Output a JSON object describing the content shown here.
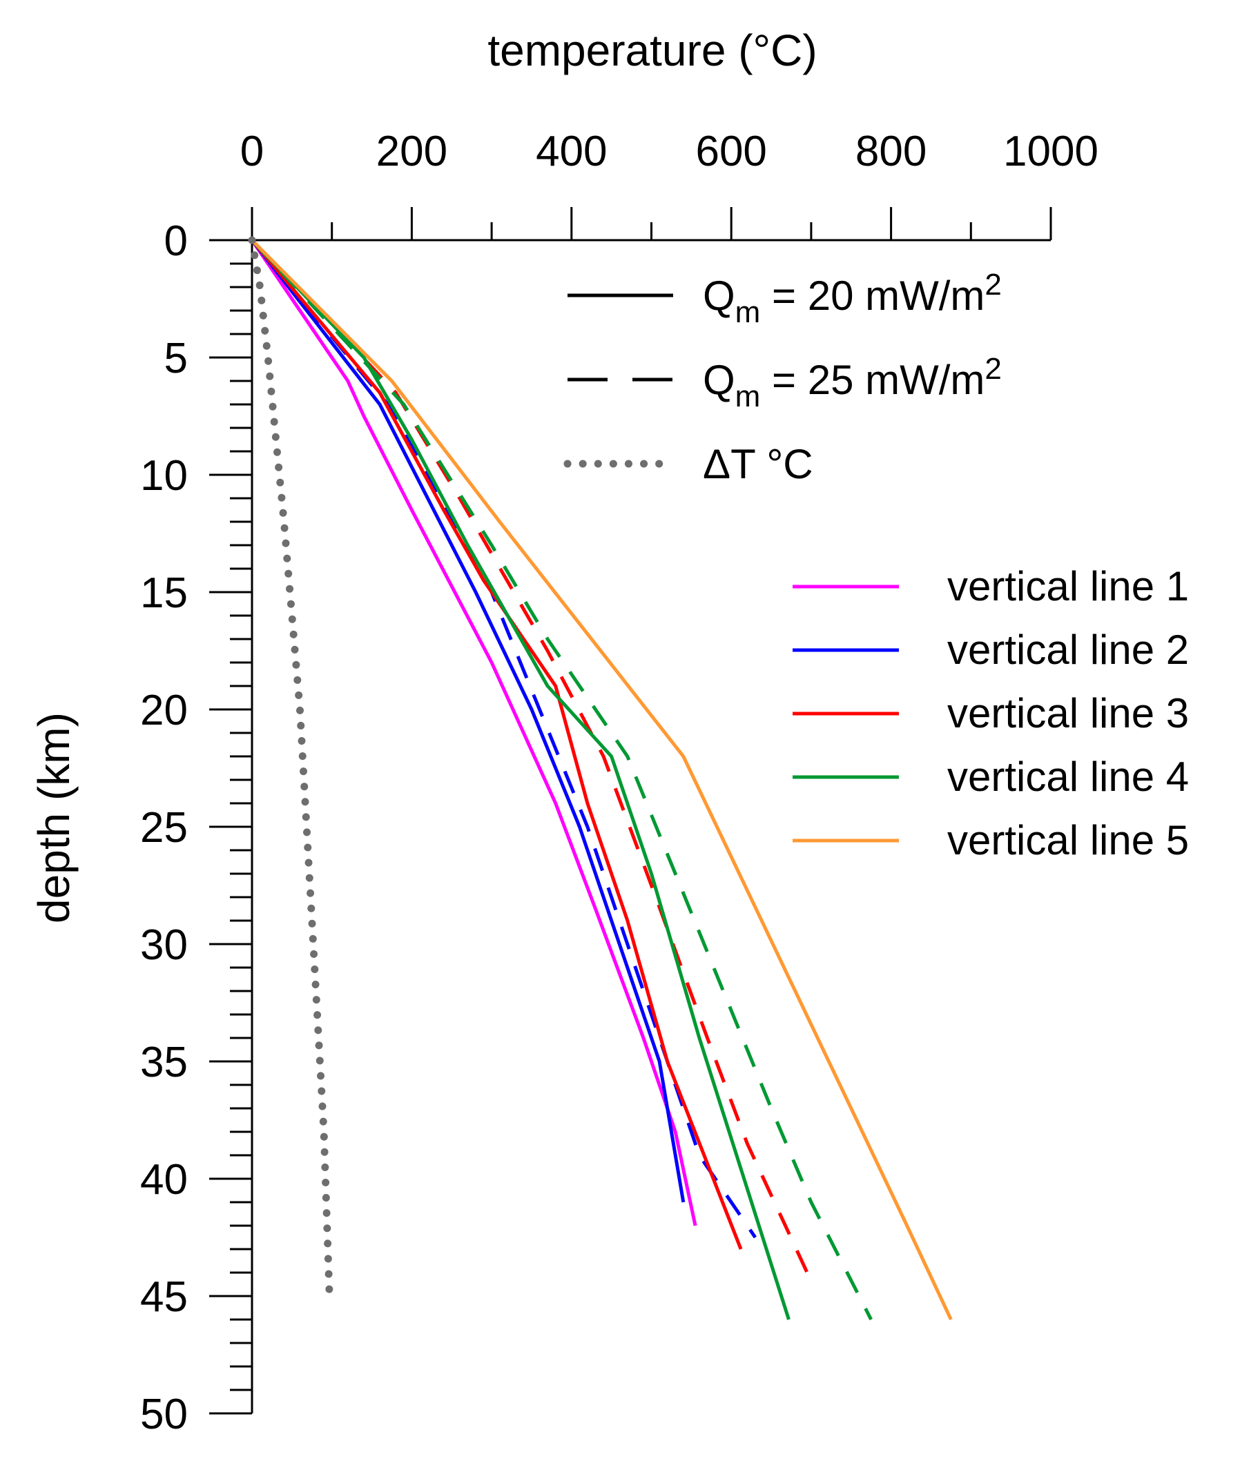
{
  "chart_data": {
    "type": "line",
    "orientation": "depth-profile",
    "xlabel": "temperature (°C)",
    "ylabel": "depth (km)",
    "xaxis_position": "top",
    "yaxis_inverted": true,
    "xlim": [
      0,
      1000
    ],
    "ylim": [
      0,
      50
    ],
    "x_ticks": [
      0,
      200,
      400,
      600,
      800,
      1000
    ],
    "x_tick_labels": [
      "0",
      "200",
      "400",
      "600",
      "800",
      "1000"
    ],
    "x_minor_step": 100,
    "y_ticks": [
      0,
      5,
      10,
      15,
      20,
      25,
      30,
      35,
      40,
      45,
      50
    ],
    "y_tick_labels": [
      "0",
      "5",
      "10",
      "15",
      "20",
      "25",
      "30",
      "35",
      "40",
      "45",
      "50"
    ],
    "y_minor_step": 1,
    "grid": false,
    "style_legend": [
      {
        "style": "solid",
        "prefix": "Q",
        "sub": "m",
        "text": " = 20 mW/m",
        "sup": "2"
      },
      {
        "style": "dashed",
        "prefix": "Q",
        "sub": "m",
        "text": " = 25 mW/m",
        "sup": "2"
      },
      {
        "style": "dotted",
        "prefix": "ΔT °C",
        "sub": "",
        "text": "",
        "sup": ""
      }
    ],
    "series": [
      {
        "name": "vertical line 1",
        "color": "#ff00ff",
        "style": "solid",
        "points": [
          [
            0,
            0
          ],
          [
            120,
            6
          ],
          [
            140,
            7.5
          ],
          [
            200,
            11.5
          ],
          [
            300,
            18
          ],
          [
            380,
            24
          ],
          [
            430,
            28.5
          ],
          [
            490,
            34
          ],
          [
            530,
            38
          ],
          [
            555,
            42
          ]
        ]
      },
      {
        "name": "vertical line 2",
        "color": "#0000ff",
        "style": "solid",
        "points": [
          [
            0,
            0
          ],
          [
            160,
            7
          ],
          [
            220,
            11
          ],
          [
            280,
            15
          ],
          [
            350,
            20
          ],
          [
            410,
            25
          ],
          [
            460,
            30
          ],
          [
            510,
            35
          ],
          [
            540,
            41
          ]
        ]
      },
      {
        "name": "vertical line 2",
        "color": "#0000ff",
        "style": "dashed",
        "points": [
          [
            0,
            0
          ],
          [
            170,
            7
          ],
          [
            220,
            10
          ],
          [
            300,
            15
          ],
          [
            360,
            20
          ],
          [
            420,
            25
          ],
          [
            470,
            30
          ],
          [
            520,
            35
          ],
          [
            560,
            39
          ],
          [
            630,
            42.5
          ]
        ]
      },
      {
        "name": "vertical line 3",
        "color": "#ff0000",
        "style": "solid",
        "points": [
          [
            0,
            0
          ],
          [
            160,
            6.5
          ],
          [
            240,
            11.5
          ],
          [
            290,
            14.5
          ],
          [
            380,
            19
          ],
          [
            420,
            24
          ],
          [
            470,
            29
          ],
          [
            520,
            35
          ],
          [
            612,
            43
          ]
        ]
      },
      {
        "name": "vertical line 3",
        "color": "#ff0000",
        "style": "dashed",
        "points": [
          [
            0,
            0
          ],
          [
            180,
            6.5
          ],
          [
            260,
            11
          ],
          [
            370,
            17.5
          ],
          [
            440,
            22
          ],
          [
            500,
            27.5
          ],
          [
            570,
            34
          ],
          [
            620,
            38.5
          ],
          [
            695,
            44
          ]
        ]
      },
      {
        "name": "vertical line 4",
        "color": "#009933",
        "style": "solid",
        "points": [
          [
            0,
            0
          ],
          [
            140,
            5
          ],
          [
            200,
            8.5
          ],
          [
            270,
            13
          ],
          [
            370,
            19
          ],
          [
            450,
            22
          ],
          [
            500,
            27
          ],
          [
            560,
            34
          ],
          [
            672,
            46
          ]
        ]
      },
      {
        "name": "vertical line 4",
        "color": "#009933",
        "style": "dashed",
        "points": [
          [
            0,
            0
          ],
          [
            190,
            7
          ],
          [
            300,
            13
          ],
          [
            370,
            17
          ],
          [
            470,
            22
          ],
          [
            530,
            27
          ],
          [
            590,
            32
          ],
          [
            650,
            37
          ],
          [
            700,
            41
          ],
          [
            775,
            46
          ]
        ]
      },
      {
        "name": "vertical line 5",
        "color": "#ff9933",
        "style": "solid",
        "points": [
          [
            0,
            0
          ],
          [
            175,
            6
          ],
          [
            310,
            12
          ],
          [
            540,
            22
          ],
          [
            610,
            27
          ],
          [
            680,
            32
          ],
          [
            750,
            37
          ],
          [
            820,
            42
          ],
          [
            875,
            46
          ]
        ]
      },
      {
        "name": "ΔT °C",
        "color": "#6e6e6e",
        "style": "dotted",
        "points": [
          [
            0,
            0
          ],
          [
            10,
            2
          ],
          [
            20,
            5
          ],
          [
            40,
            12
          ],
          [
            60,
            20
          ],
          [
            80,
            32
          ],
          [
            90,
            38
          ],
          [
            97,
            45
          ]
        ]
      }
    ]
  }
}
